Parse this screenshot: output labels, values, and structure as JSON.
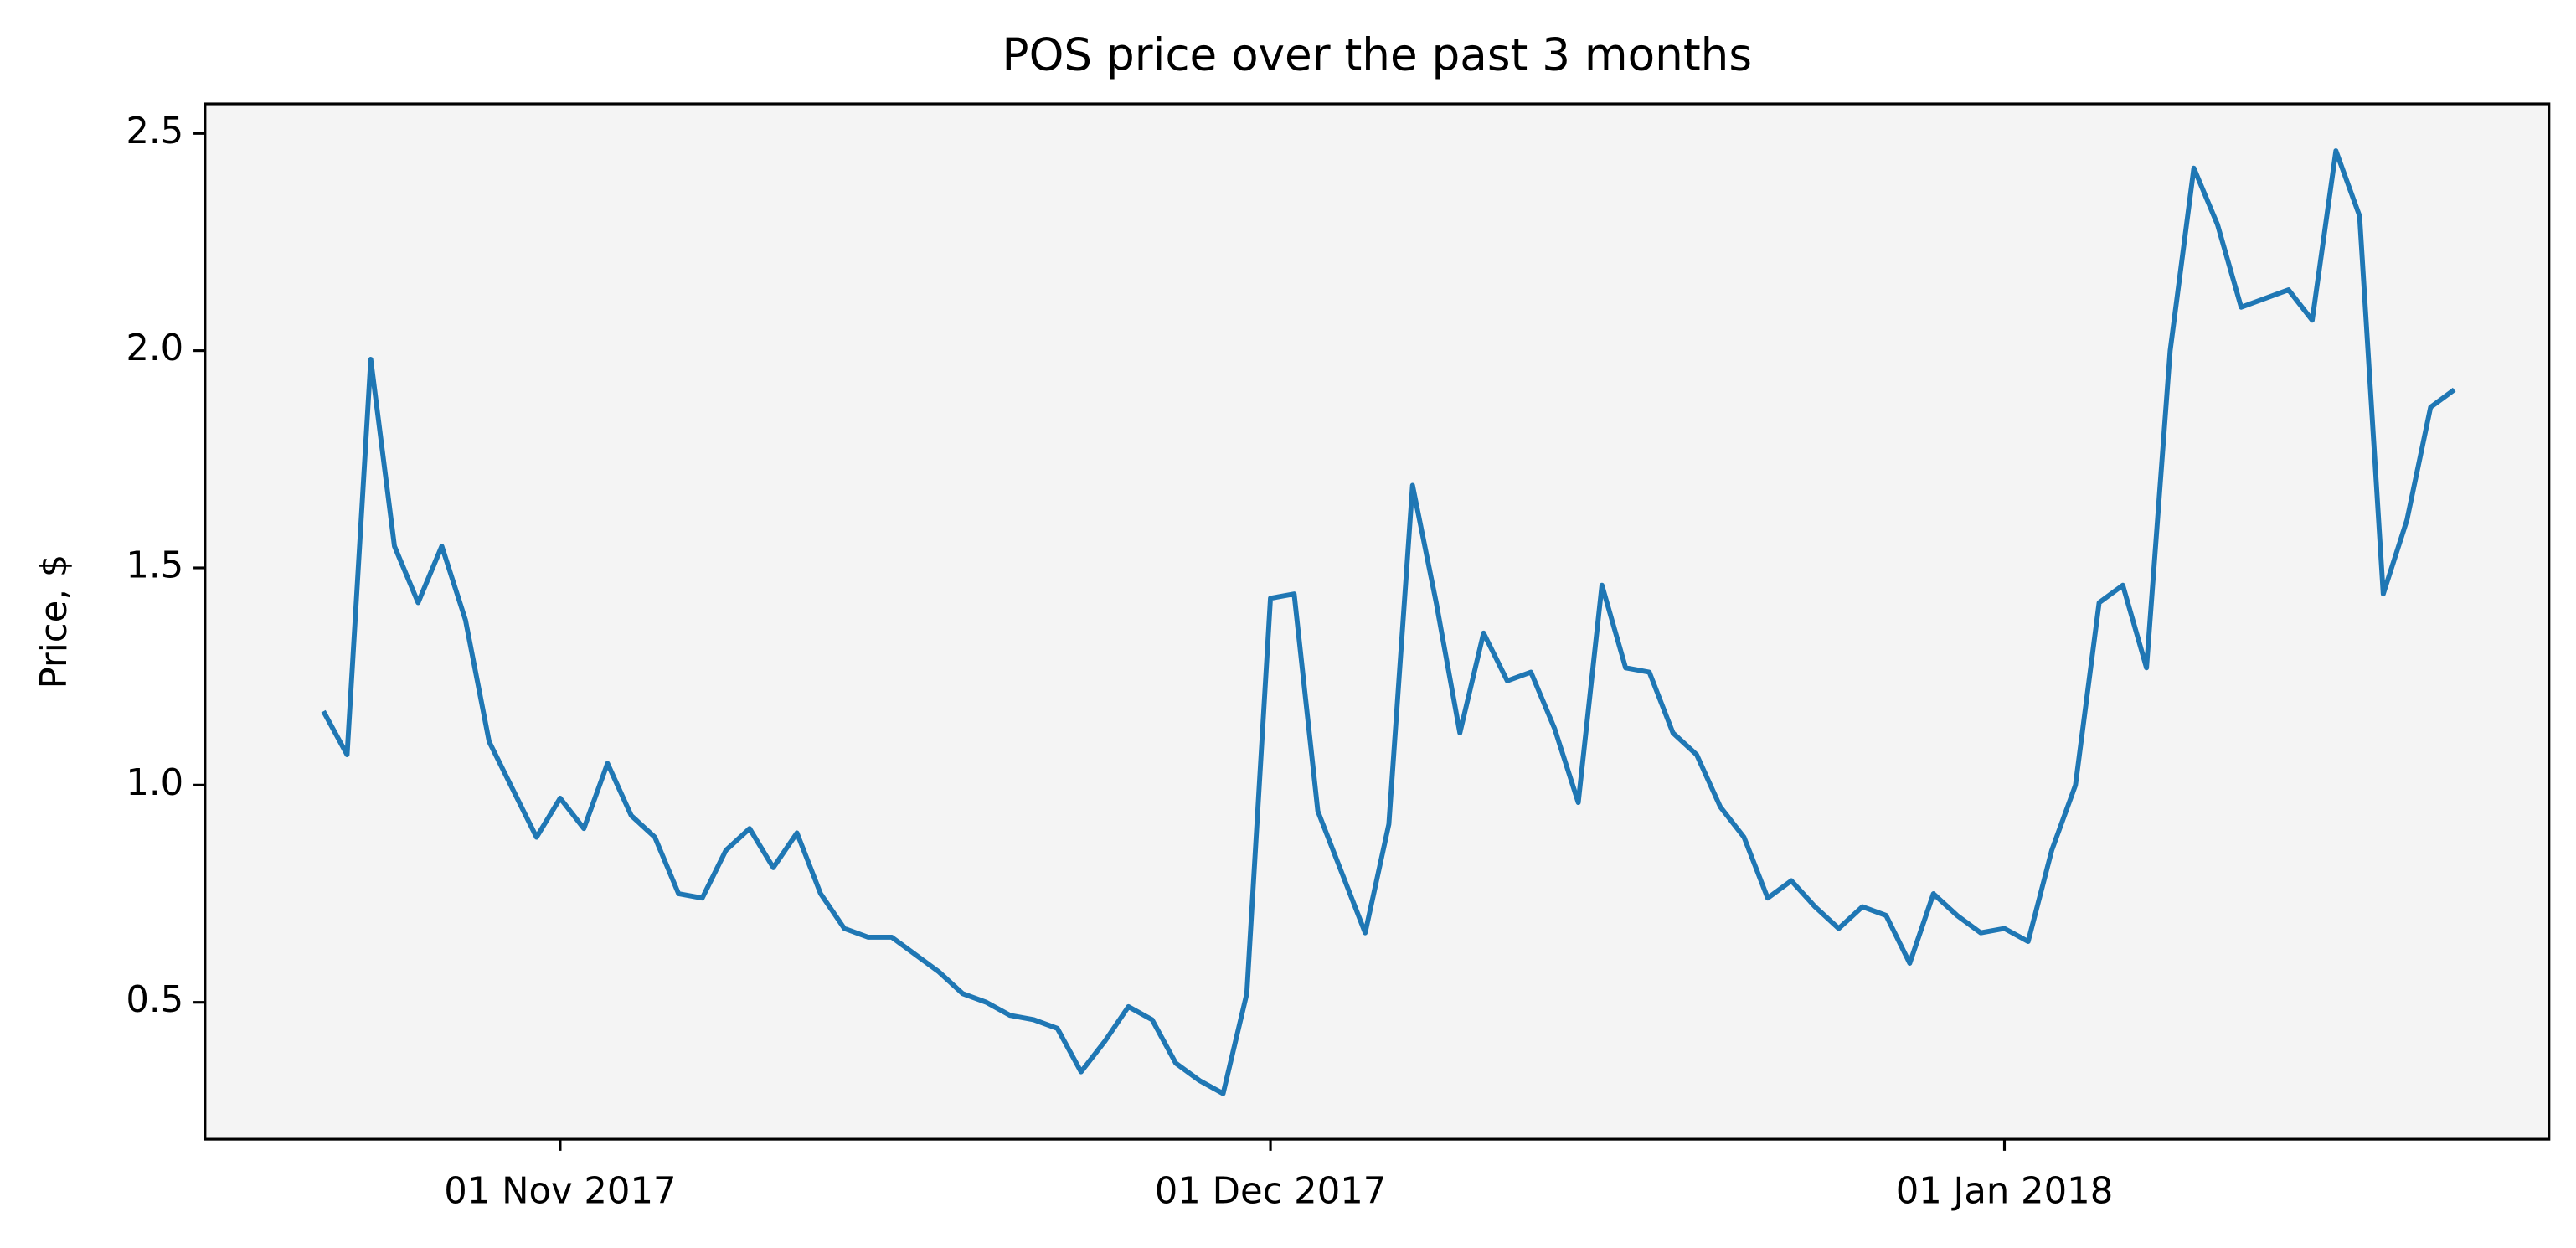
{
  "chart_data": {
    "type": "line",
    "title": "POS price over the past 3 months",
    "y_label": "Price, $",
    "x": [
      "2017-10-22",
      "2017-10-23",
      "2017-10-24",
      "2017-10-25",
      "2017-10-26",
      "2017-10-27",
      "2017-10-28",
      "2017-10-29",
      "2017-10-30",
      "2017-10-31",
      "2017-11-01",
      "2017-11-02",
      "2017-11-03",
      "2017-11-04",
      "2017-11-05",
      "2017-11-06",
      "2017-11-07",
      "2017-11-08",
      "2017-11-09",
      "2017-11-10",
      "2017-11-11",
      "2017-11-12",
      "2017-11-13",
      "2017-11-14",
      "2017-11-15",
      "2017-11-16",
      "2017-11-17",
      "2017-11-18",
      "2017-11-19",
      "2017-11-20",
      "2017-11-21",
      "2017-11-22",
      "2017-11-23",
      "2017-11-24",
      "2017-11-25",
      "2017-11-26",
      "2017-11-27",
      "2017-11-28",
      "2017-11-29",
      "2017-11-30",
      "2017-12-01",
      "2017-12-02",
      "2017-12-03",
      "2017-12-04",
      "2017-12-05",
      "2017-12-06",
      "2017-12-07",
      "2017-12-08",
      "2017-12-09",
      "2017-12-10",
      "2017-12-11",
      "2017-12-12",
      "2017-12-13",
      "2017-12-14",
      "2017-12-15",
      "2017-12-16",
      "2017-12-17",
      "2017-12-18",
      "2017-12-19",
      "2017-12-20",
      "2017-12-21",
      "2017-12-22",
      "2017-12-23",
      "2017-12-24",
      "2017-12-25",
      "2017-12-26",
      "2017-12-27",
      "2017-12-28",
      "2017-12-29",
      "2017-12-30",
      "2017-12-31",
      "2018-01-01",
      "2018-01-02",
      "2018-01-03",
      "2018-01-04",
      "2018-01-05",
      "2018-01-06",
      "2018-01-07",
      "2018-01-08",
      "2018-01-09",
      "2018-01-10",
      "2018-01-11",
      "2018-01-12",
      "2018-01-13",
      "2018-01-14",
      "2018-01-15",
      "2018-01-16",
      "2018-01-17",
      "2018-01-18",
      "2018-01-19",
      "2018-01-20"
    ],
    "series": [
      {
        "color": "#1f77b4",
        "values": [
          1.17,
          1.07,
          1.98,
          1.55,
          1.42,
          1.55,
          1.38,
          1.1,
          0.99,
          0.88,
          0.97,
          0.9,
          1.05,
          0.93,
          0.88,
          0.75,
          0.74,
          0.85,
          0.9,
          0.81,
          0.89,
          0.75,
          0.67,
          0.65,
          0.65,
          0.61,
          0.57,
          0.52,
          0.5,
          0.47,
          0.46,
          0.44,
          0.34,
          0.41,
          0.49,
          0.46,
          0.36,
          0.32,
          0.29,
          0.52,
          1.43,
          1.44,
          0.94,
          0.8,
          0.66,
          0.91,
          1.69,
          1.42,
          1.12,
          1.35,
          1.24,
          1.26,
          1.13,
          0.96,
          1.46,
          1.27,
          1.26,
          1.12,
          1.07,
          0.95,
          0.88,
          0.74,
          0.78,
          0.72,
          0.67,
          0.72,
          0.7,
          0.59,
          0.75,
          0.7,
          0.66,
          0.67,
          0.64,
          0.85,
          1.0,
          1.42,
          1.46,
          1.27,
          2.0,
          2.42,
          2.29,
          2.1,
          2.12,
          2.14,
          2.07,
          2.46,
          2.31,
          1.44,
          1.61,
          1.87,
          1.91
        ]
      }
    ],
    "xlim": [
      "2017-10-17",
      "2018-01-24"
    ],
    "xticks": [
      {
        "value": "2017-11-01",
        "label": "01 Nov 2017"
      },
      {
        "value": "2017-12-01",
        "label": "01 Dec 2017"
      },
      {
        "value": "2018-01-01",
        "label": "01 Jan 2018"
      }
    ],
    "ylim": [
      0.185,
      2.568
    ],
    "yticks": [
      0.5,
      {
        "value": 1,
        "label": "1.0"
      },
      1.5,
      {
        "value": 2,
        "label": "2.0"
      },
      2.5
    ],
    "plot_background": "#f4f4f4"
  }
}
